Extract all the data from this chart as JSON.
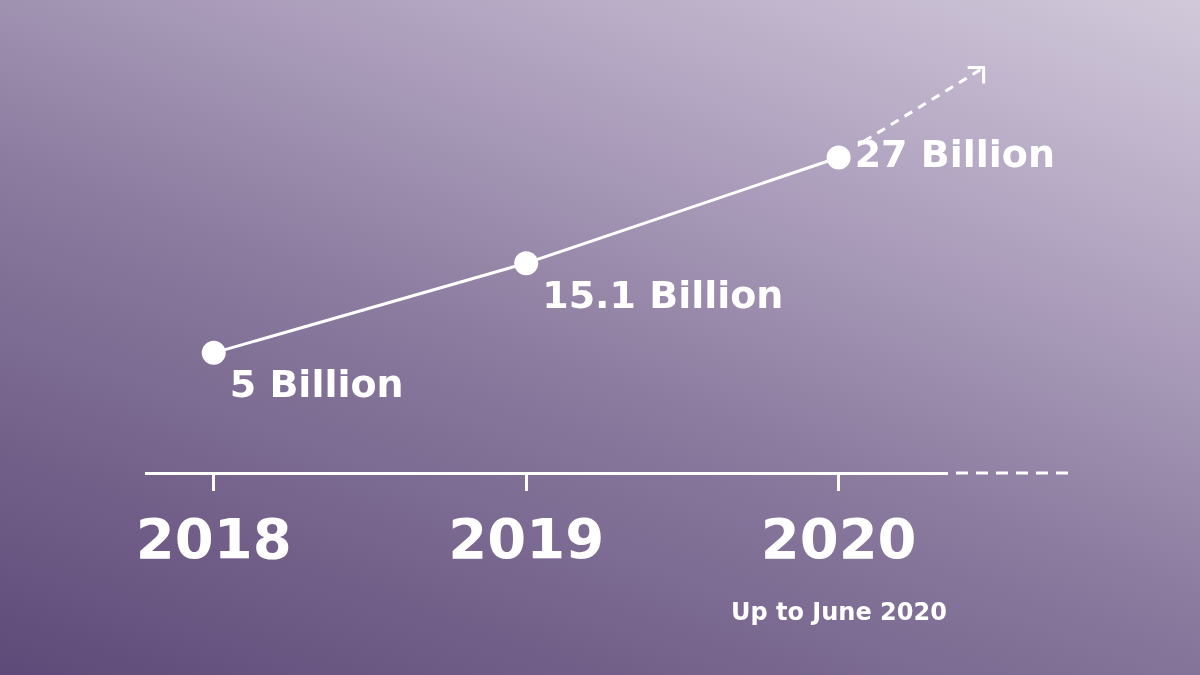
{
  "chart_data": {
    "type": "line",
    "categories": [
      "2018",
      "2019",
      "2020"
    ],
    "values": [
      5,
      15.1,
      27
    ],
    "value_labels": [
      "5 Billion",
      "15.1 Billion",
      "27 Billion"
    ],
    "color": "#ffffff",
    "marker": "circle",
    "line_style": "solid",
    "grid": false,
    "legend": false,
    "tick_labels": "x",
    "annotations": [
      "Up to June 2020"
    ]
  }
}
